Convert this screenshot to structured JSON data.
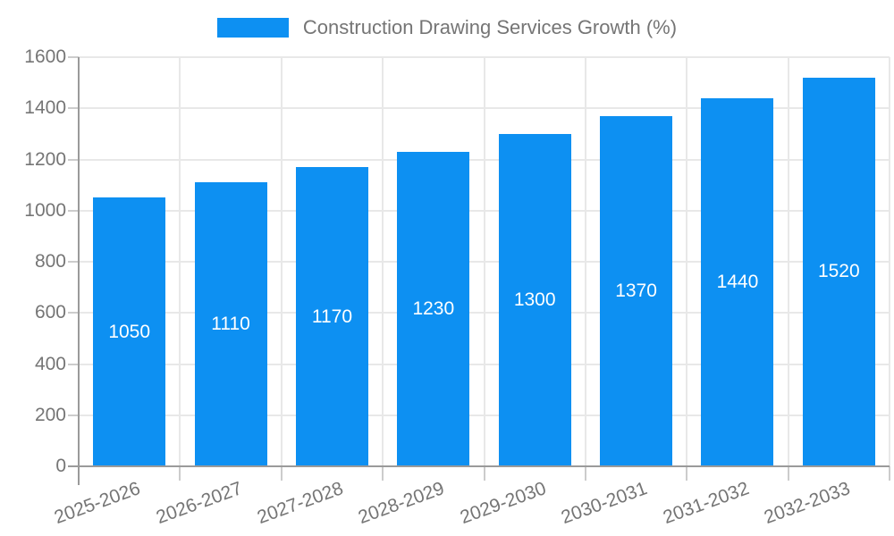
{
  "colors": {
    "bar": "#0d90f2",
    "text": "#757575",
    "value_label": "#ffffff",
    "axis": "#9a9a9a",
    "grid": "#e8e8e8",
    "tick": "#cccccc"
  },
  "chart_data": {
    "type": "bar",
    "title": "Construction Drawing Services Growth (%)",
    "legend": [
      "Construction Drawing Services Growth (%)"
    ],
    "legend_position": "top-center",
    "categories": [
      "2025-2026",
      "2026-2027",
      "2027-2028",
      "2028-2029",
      "2029-2030",
      "2030-2031",
      "2031-2032",
      "2032-2033"
    ],
    "values": [
      1050,
      1110,
      1170,
      1230,
      1300,
      1370,
      1440,
      1520
    ],
    "bar_labels": [
      "1050",
      "1110",
      "1170",
      "1230",
      "1300",
      "1370",
      "1440",
      "1520"
    ],
    "bar_labels_position": "inside-center",
    "xlabel": "",
    "ylabel": "",
    "ylim": [
      0,
      1600
    ],
    "yticks": [
      0,
      200,
      400,
      600,
      800,
      1000,
      1200,
      1400,
      1600
    ],
    "grid": true,
    "x_tick_rotation_deg": -20
  }
}
